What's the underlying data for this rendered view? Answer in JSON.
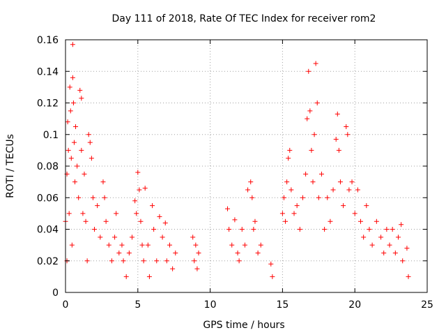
{
  "chart_data": {
    "type": "scatter",
    "title": "Day 111 of 2018, Rate Of TEC Index for receiver rom2",
    "xlabel": "GPS time / hours",
    "ylabel": "ROTI / TECUs",
    "xlim": [
      0,
      25
    ],
    "ylim": [
      0,
      0.16
    ],
    "x_ticks": [
      "0",
      "5",
      "10",
      "15",
      "20",
      "25"
    ],
    "y_ticks": [
      "0",
      "0.02",
      "0.04",
      "0.06",
      "0.08",
      "0.1",
      "0.12",
      "0.14",
      "0.16"
    ],
    "grid": true,
    "legend": "none",
    "marker": "+",
    "color": "#ff0000",
    "series": [
      {
        "values": [
          [
            0.0,
            0.045
          ],
          [
            0.1,
            0.075
          ],
          [
            0.1,
            0.02
          ],
          [
            0.15,
            0.108
          ],
          [
            0.2,
            0.09
          ],
          [
            0.25,
            0.05
          ],
          [
            0.3,
            0.13
          ],
          [
            0.35,
            0.115
          ],
          [
            0.4,
            0.085
          ],
          [
            0.45,
            0.03
          ],
          [
            0.5,
            0.157
          ],
          [
            0.5,
            0.136
          ],
          [
            0.55,
            0.12
          ],
          [
            0.6,
            0.095
          ],
          [
            0.65,
            0.07
          ],
          [
            0.7,
            0.105
          ],
          [
            0.8,
            0.08
          ],
          [
            0.9,
            0.06
          ],
          [
            1.0,
            0.128
          ],
          [
            1.1,
            0.123
          ],
          [
            1.1,
            0.09
          ],
          [
            1.2,
            0.05
          ],
          [
            1.3,
            0.075
          ],
          [
            1.4,
            0.045
          ],
          [
            1.5,
            0.02
          ],
          [
            1.6,
            0.1
          ],
          [
            1.7,
            0.095
          ],
          [
            1.8,
            0.085
          ],
          [
            1.9,
            0.06
          ],
          [
            2.0,
            0.04
          ],
          [
            2.2,
            0.055
          ],
          [
            2.4,
            0.035
          ],
          [
            2.6,
            0.07
          ],
          [
            2.7,
            0.06
          ],
          [
            2.8,
            0.045
          ],
          [
            3.0,
            0.03
          ],
          [
            3.2,
            0.02
          ],
          [
            3.4,
            0.035
          ],
          [
            3.5,
            0.05
          ],
          [
            3.7,
            0.025
          ],
          [
            3.9,
            0.03
          ],
          [
            4.0,
            0.02
          ],
          [
            4.2,
            0.01
          ],
          [
            4.4,
            0.025
          ],
          [
            4.6,
            0.035
          ],
          [
            4.8,
            0.058
          ],
          [
            4.9,
            0.05
          ],
          [
            5.0,
            0.076
          ],
          [
            5.1,
            0.065
          ],
          [
            5.2,
            0.045
          ],
          [
            5.3,
            0.03
          ],
          [
            5.4,
            0.02
          ],
          [
            5.5,
            0.066
          ],
          [
            5.7,
            0.03
          ],
          [
            5.8,
            0.01
          ],
          [
            6.0,
            0.055
          ],
          [
            6.1,
            0.04
          ],
          [
            6.3,
            0.02
          ],
          [
            6.5,
            0.048
          ],
          [
            6.7,
            0.035
          ],
          [
            6.9,
            0.044
          ],
          [
            7.0,
            0.02
          ],
          [
            7.2,
            0.03
          ],
          [
            7.4,
            0.015
          ],
          [
            7.6,
            0.025
          ],
          [
            8.8,
            0.035
          ],
          [
            8.9,
            0.02
          ],
          [
            9.0,
            0.03
          ],
          [
            9.1,
            0.015
          ],
          [
            9.2,
            0.025
          ],
          [
            11.2,
            0.053
          ],
          [
            11.3,
            0.04
          ],
          [
            11.5,
            0.03
          ],
          [
            11.7,
            0.046
          ],
          [
            11.9,
            0.025
          ],
          [
            12.0,
            0.02
          ],
          [
            12.2,
            0.04
          ],
          [
            12.4,
            0.03
          ],
          [
            12.6,
            0.065
          ],
          [
            12.8,
            0.07
          ],
          [
            12.9,
            0.06
          ],
          [
            13.0,
            0.04
          ],
          [
            13.1,
            0.045
          ],
          [
            13.3,
            0.025
          ],
          [
            13.5,
            0.03
          ],
          [
            14.2,
            0.018
          ],
          [
            14.3,
            0.01
          ],
          [
            15.0,
            0.05
          ],
          [
            15.1,
            0.06
          ],
          [
            15.2,
            0.045
          ],
          [
            15.3,
            0.07
          ],
          [
            15.4,
            0.085
          ],
          [
            15.5,
            0.09
          ],
          [
            15.6,
            0.065
          ],
          [
            15.8,
            0.05
          ],
          [
            16.0,
            0.055
          ],
          [
            16.2,
            0.04
          ],
          [
            16.4,
            0.06
          ],
          [
            16.6,
            0.075
          ],
          [
            16.7,
            0.11
          ],
          [
            16.8,
            0.14
          ],
          [
            16.9,
            0.115
          ],
          [
            17.0,
            0.09
          ],
          [
            17.1,
            0.07
          ],
          [
            17.2,
            0.1
          ],
          [
            17.3,
            0.145
          ],
          [
            17.4,
            0.12
          ],
          [
            17.5,
            0.06
          ],
          [
            17.7,
            0.075
          ],
          [
            17.9,
            0.04
          ],
          [
            18.1,
            0.06
          ],
          [
            18.3,
            0.045
          ],
          [
            18.5,
            0.065
          ],
          [
            18.7,
            0.097
          ],
          [
            18.8,
            0.113
          ],
          [
            18.9,
            0.09
          ],
          [
            19.0,
            0.07
          ],
          [
            19.2,
            0.055
          ],
          [
            19.4,
            0.105
          ],
          [
            19.5,
            0.1
          ],
          [
            19.6,
            0.065
          ],
          [
            19.8,
            0.07
          ],
          [
            20.0,
            0.05
          ],
          [
            20.2,
            0.065
          ],
          [
            20.4,
            0.045
          ],
          [
            20.6,
            0.035
          ],
          [
            20.8,
            0.055
          ],
          [
            21.0,
            0.04
          ],
          [
            21.2,
            0.03
          ],
          [
            21.5,
            0.045
          ],
          [
            21.8,
            0.035
          ],
          [
            22.0,
            0.025
          ],
          [
            22.2,
            0.04
          ],
          [
            22.4,
            0.03
          ],
          [
            22.6,
            0.04
          ],
          [
            22.8,
            0.025
          ],
          [
            23.0,
            0.035
          ],
          [
            23.2,
            0.043
          ],
          [
            23.3,
            0.02
          ],
          [
            23.6,
            0.028
          ],
          [
            23.7,
            0.01
          ]
        ]
      }
    ]
  }
}
